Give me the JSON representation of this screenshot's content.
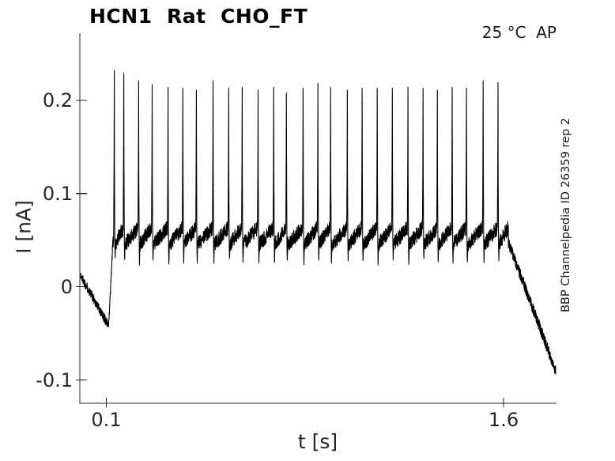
{
  "chart_data": {
    "type": "line",
    "title": "HCN1  Rat  CHO_FT",
    "annotation_top_right": "25 °C  AP",
    "side_label": "BBP Channelpedia ID 26359 rep 2",
    "xlabel": "t [s]",
    "ylabel": "I [nA]",
    "x_ticks": [
      0.1,
      1.6
    ],
    "y_ticks": [
      -0.1,
      0,
      0.1,
      0.2
    ],
    "xlim": [
      0,
      1.8
    ],
    "ylim": [
      -0.125,
      0.272
    ],
    "grid": false,
    "legend": null,
    "line_color": "#000000",
    "axis_color": "#262626",
    "background": "#ffffff",
    "signal": {
      "description": "Whole-cell current recording: initial sag from ~0.012 to -0.042 nA, fast rise to a noisy ~0.05 nA plateau carrying 27 brief spikes to ~0.21-0.23 nA with small after-dips, then decay to ~-0.09 nA",
      "baseline": {
        "t_start": 0.003,
        "i_start": 0.012,
        "t_end": 0.109,
        "i_end": -0.042,
        "noise": 0.005
      },
      "rise": {
        "t_end": 0.125,
        "i_end": 0.05,
        "noise": 0.004
      },
      "plateau": {
        "t_end": 1.618,
        "i_low": 0.044,
        "i_high": 0.064,
        "noise": 0.008,
        "afterdip_i": 0.027
      },
      "decay": {
        "t_start_i": 0.048,
        "t_end": 1.797,
        "i_end": -0.09,
        "noise": 0.006
      },
      "spike_times_s": [
        0.13,
        0.166,
        0.222,
        0.273,
        0.333,
        0.389,
        0.44,
        0.503,
        0.562,
        0.613,
        0.673,
        0.732,
        0.78,
        0.843,
        0.899,
        0.947,
        1.01,
        1.066,
        1.123,
        1.18,
        1.239,
        1.296,
        1.35,
        1.406,
        1.46,
        1.523,
        1.579
      ],
      "spike_peaks_nA": [
        0.232,
        0.229,
        0.221,
        0.217,
        0.214,
        0.213,
        0.211,
        0.221,
        0.213,
        0.214,
        0.211,
        0.214,
        0.208,
        0.213,
        0.218,
        0.214,
        0.211,
        0.213,
        0.213,
        0.213,
        0.214,
        0.213,
        0.211,
        0.214,
        0.213,
        0.221,
        0.219
      ]
    }
  }
}
